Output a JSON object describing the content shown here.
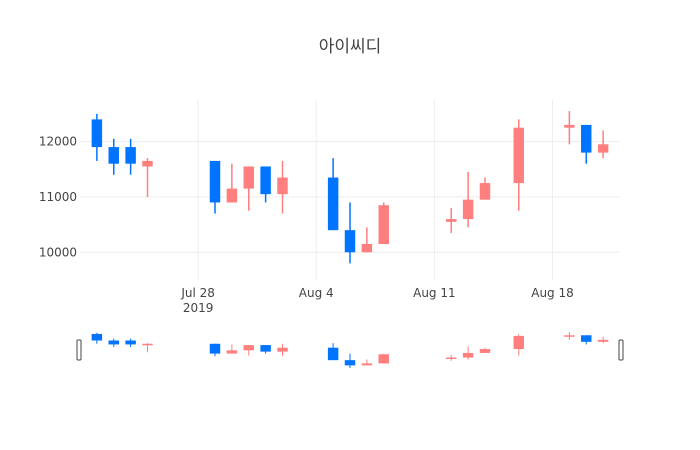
{
  "chart_data": {
    "type": "candlestick",
    "title": "아이씨디",
    "colors": {
      "increasing": "#ff7f7f",
      "decreasing": "#0074ff",
      "grid": "#eeeeee",
      "handle": "#444444"
    },
    "y_ticks": [
      "10000",
      "11000",
      "12000"
    ],
    "x_ticks": [
      {
        "date": "2019-07-28",
        "label": "Jul 28",
        "sublabel": "2019"
      },
      {
        "date": "2019-08-04",
        "label": "Aug 4",
        "sublabel": ""
      },
      {
        "date": "2019-08-11",
        "label": "Aug 11",
        "sublabel": ""
      },
      {
        "date": "2019-08-18",
        "label": "Aug 18",
        "sublabel": ""
      }
    ],
    "x_range": [
      "2019-07-21",
      "2019-08-22"
    ],
    "y_range": [
      9500,
      12750
    ],
    "candles": [
      {
        "date": "2019-07-22",
        "open": 12400,
        "high": 12500,
        "low": 11650,
        "close": 11900
      },
      {
        "date": "2019-07-23",
        "open": 11900,
        "high": 12050,
        "low": 11400,
        "close": 11600
      },
      {
        "date": "2019-07-24",
        "open": 11900,
        "high": 12050,
        "low": 11400,
        "close": 11600
      },
      {
        "date": "2019-07-25",
        "open": 11550,
        "high": 11700,
        "low": 11000,
        "close": 11650
      },
      {
        "date": "2019-07-29",
        "open": 11650,
        "high": 11650,
        "low": 10700,
        "close": 10900
      },
      {
        "date": "2019-07-30",
        "open": 10900,
        "high": 11600,
        "low": 10900,
        "close": 11150
      },
      {
        "date": "2019-07-31",
        "open": 11150,
        "high": 11550,
        "low": 10750,
        "close": 11550
      },
      {
        "date": "2019-08-01",
        "open": 11550,
        "high": 11550,
        "low": 10900,
        "close": 11050
      },
      {
        "date": "2019-08-02",
        "open": 11050,
        "high": 11650,
        "low": 10700,
        "close": 11350
      },
      {
        "date": "2019-08-05",
        "open": 11350,
        "high": 11700,
        "low": 10400,
        "close": 10400
      },
      {
        "date": "2019-08-06",
        "open": 10400,
        "high": 10900,
        "low": 9800,
        "close": 10000
      },
      {
        "date": "2019-08-07",
        "open": 10000,
        "high": 10450,
        "low": 10000,
        "close": 10150
      },
      {
        "date": "2019-08-08",
        "open": 10150,
        "high": 10900,
        "low": 10150,
        "close": 10850
      },
      {
        "date": "2019-08-12",
        "open": 10550,
        "high": 10800,
        "low": 10350,
        "close": 10600
      },
      {
        "date": "2019-08-13",
        "open": 10600,
        "high": 11450,
        "low": 10450,
        "close": 10950
      },
      {
        "date": "2019-08-14",
        "open": 10950,
        "high": 11350,
        "low": 10950,
        "close": 11250
      },
      {
        "date": "2019-08-16",
        "open": 11250,
        "high": 12400,
        "low": 10750,
        "close": 12250
      },
      {
        "date": "2019-08-19",
        "open": 12250,
        "high": 12550,
        "low": 11950,
        "close": 12300
      },
      {
        "date": "2019-08-20",
        "open": 12300,
        "high": 12300,
        "low": 11600,
        "close": 11800
      },
      {
        "date": "2019-08-21",
        "open": 11800,
        "high": 12200,
        "low": 11700,
        "close": 11950
      }
    ]
  }
}
